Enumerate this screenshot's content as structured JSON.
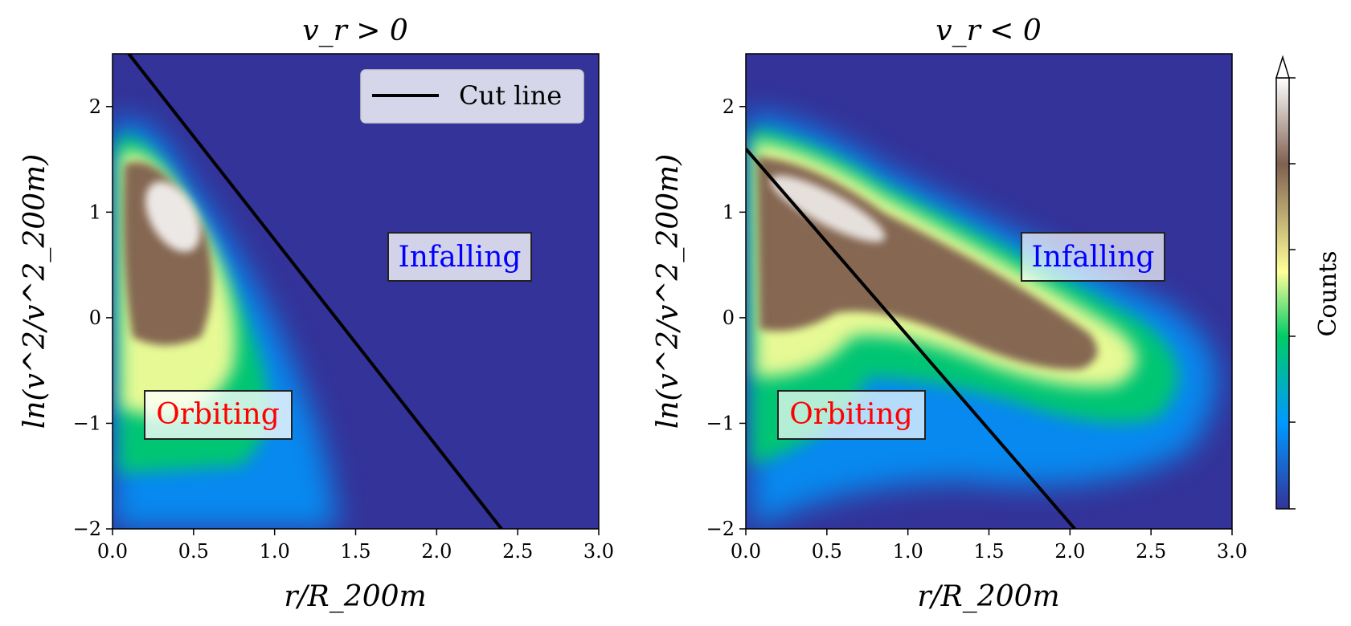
{
  "chart_data": [
    {
      "type": "heatmap",
      "title": "v_r > 0",
      "xlabel": "r/R_200m",
      "ylabel": "ln(v^2/v^2_200m)",
      "xlim": [
        0.0,
        3.0
      ],
      "ylim": [
        -2.0,
        2.5
      ],
      "xticks": [
        "0.0",
        "0.5",
        "1.0",
        "1.5",
        "2.0",
        "2.5",
        "3.0"
      ],
      "yticks": [
        "−2",
        "−1",
        "0",
        "1",
        "2"
      ],
      "xtick_values": [
        0.0,
        0.5,
        1.0,
        1.5,
        2.0,
        2.5,
        3.0
      ],
      "ytick_values": [
        -2,
        -1,
        0,
        1,
        2
      ],
      "cut_line": {
        "x": [
          0.1,
          2.4
        ],
        "y": [
          2.5,
          -2.0
        ]
      },
      "legend": {
        "label": "Cut line",
        "placement": "upper right"
      },
      "annotations": [
        {
          "text": "Infalling",
          "x": 2.15,
          "y": 0.58,
          "color": "#0000ff"
        },
        {
          "text": "Orbiting",
          "x": 0.65,
          "y": -0.92,
          "color": "#ff0000"
        }
      ],
      "grid": false
    },
    {
      "type": "heatmap",
      "title": "v_r < 0",
      "xlabel": "r/R_200m",
      "ylabel": "ln(v^2/v^2_200m)",
      "xlim": [
        0.0,
        3.0
      ],
      "ylim": [
        -2.0,
        2.5
      ],
      "xticks": [
        "0.0",
        "0.5",
        "1.0",
        "1.5",
        "2.0",
        "2.5",
        "3.0"
      ],
      "yticks": [
        "−2",
        "−1",
        "0",
        "1",
        "2"
      ],
      "xtick_values": [
        0.0,
        0.5,
        1.0,
        1.5,
        2.0,
        2.5,
        3.0
      ],
      "ytick_values": [
        -2,
        -1,
        0,
        1,
        2
      ],
      "cut_line": {
        "x": [
          0.0,
          2.03
        ],
        "y": [
          1.6,
          -2.0
        ]
      },
      "annotations": [
        {
          "text": "Infalling",
          "x": 2.15,
          "y": 0.58,
          "color": "#0000ff"
        },
        {
          "text": "Orbiting",
          "x": 0.65,
          "y": -0.92,
          "color": "#ff0000"
        }
      ],
      "grid": false
    }
  ],
  "colorbar": {
    "label": "Counts",
    "colormap": "terrain",
    "extend": "max",
    "stops": [
      "#333399",
      "#0099ff",
      "#00cc66",
      "#ffff99",
      "#806050",
      "#ffffff"
    ]
  },
  "colors": {
    "background": "#333399",
    "line": "#000000"
  }
}
